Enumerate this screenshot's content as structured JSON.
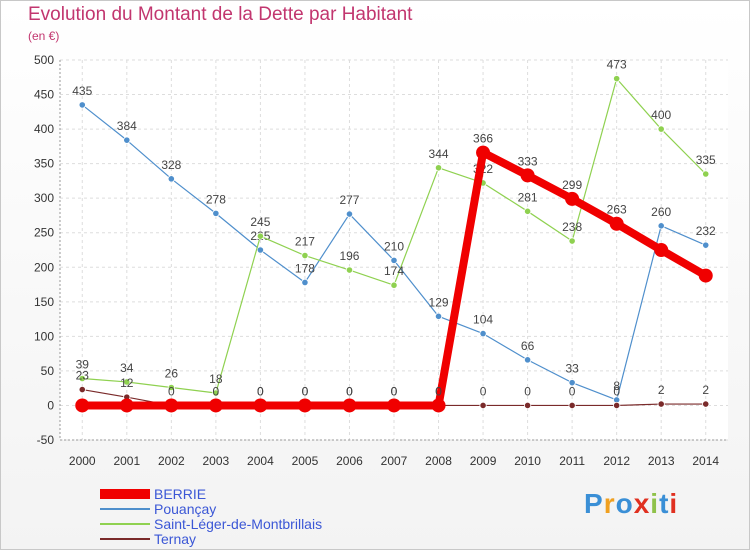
{
  "title": "Evolution du Montant de la Dette par Habitant",
  "unit": "(en €)",
  "logo": "Proxiti",
  "logo_colors": [
    "#3a8fd6",
    "#f0a020",
    "#3a8fd6",
    "#e03020",
    "#8fc24a",
    "#3a8fd6",
    "#e03020"
  ],
  "chart_data": {
    "type": "line",
    "x": [
      "2000",
      "2001",
      "2002",
      "2003",
      "2004",
      "2005",
      "2006",
      "2007",
      "2008",
      "2009",
      "2010",
      "2011",
      "2012",
      "2013",
      "2014"
    ],
    "ylim": [
      -50,
      500
    ],
    "yticks": [
      -50,
      0,
      50,
      100,
      150,
      200,
      250,
      300,
      350,
      400,
      450,
      500
    ],
    "grid": true,
    "legend_placement": "bottom-left",
    "series": [
      {
        "name": "Pouançay",
        "color": "#4f8fcc",
        "values": [
          435,
          384,
          328,
          278,
          225,
          178,
          277,
          210,
          129,
          104,
          66,
          33,
          8,
          260,
          232
        ],
        "labels": [
          "435",
          "384",
          "328",
          "278",
          "225",
          "178",
          "277",
          "210",
          "129",
          "104",
          "66",
          "33",
          "8",
          "260",
          "232"
        ]
      },
      {
        "name": "Saint-Léger-de-Montbrillais",
        "color": "#8fd150",
        "values": [
          39,
          34,
          26,
          18,
          245,
          217,
          196,
          174,
          344,
          322,
          281,
          238,
          473,
          400,
          335
        ],
        "labels": [
          "39",
          "34",
          "26",
          "18",
          "245",
          "217",
          "196",
          "174",
          "344",
          "322",
          "281",
          "238",
          "473",
          "400",
          "335"
        ]
      },
      {
        "name": "Ternay",
        "color": "#7a2a2a",
        "values": [
          23,
          12,
          0,
          0,
          0,
          0,
          0,
          0,
          0,
          0,
          0,
          0,
          0,
          2,
          2
        ],
        "labels": [
          "23",
          "12",
          "0",
          "0",
          "0",
          "0",
          "0",
          "0",
          "0",
          "0",
          "0",
          "0",
          "0",
          "2",
          "2"
        ]
      },
      {
        "name": "BERRIE",
        "color": "#f00000",
        "values": [
          0,
          0,
          0,
          0,
          0,
          0,
          0,
          0,
          0,
          366,
          333,
          299,
          263,
          225,
          188
        ],
        "labels": [
          "",
          "",
          "",
          "",
          "0",
          "0",
          "0",
          "0",
          "0",
          "366",
          "333",
          "299",
          "263",
          "",
          ""
        ]
      }
    ],
    "legend": [
      "BERRIE",
      "Pouançay",
      "Saint-Léger-de-Montbrillais",
      "Ternay"
    ]
  }
}
